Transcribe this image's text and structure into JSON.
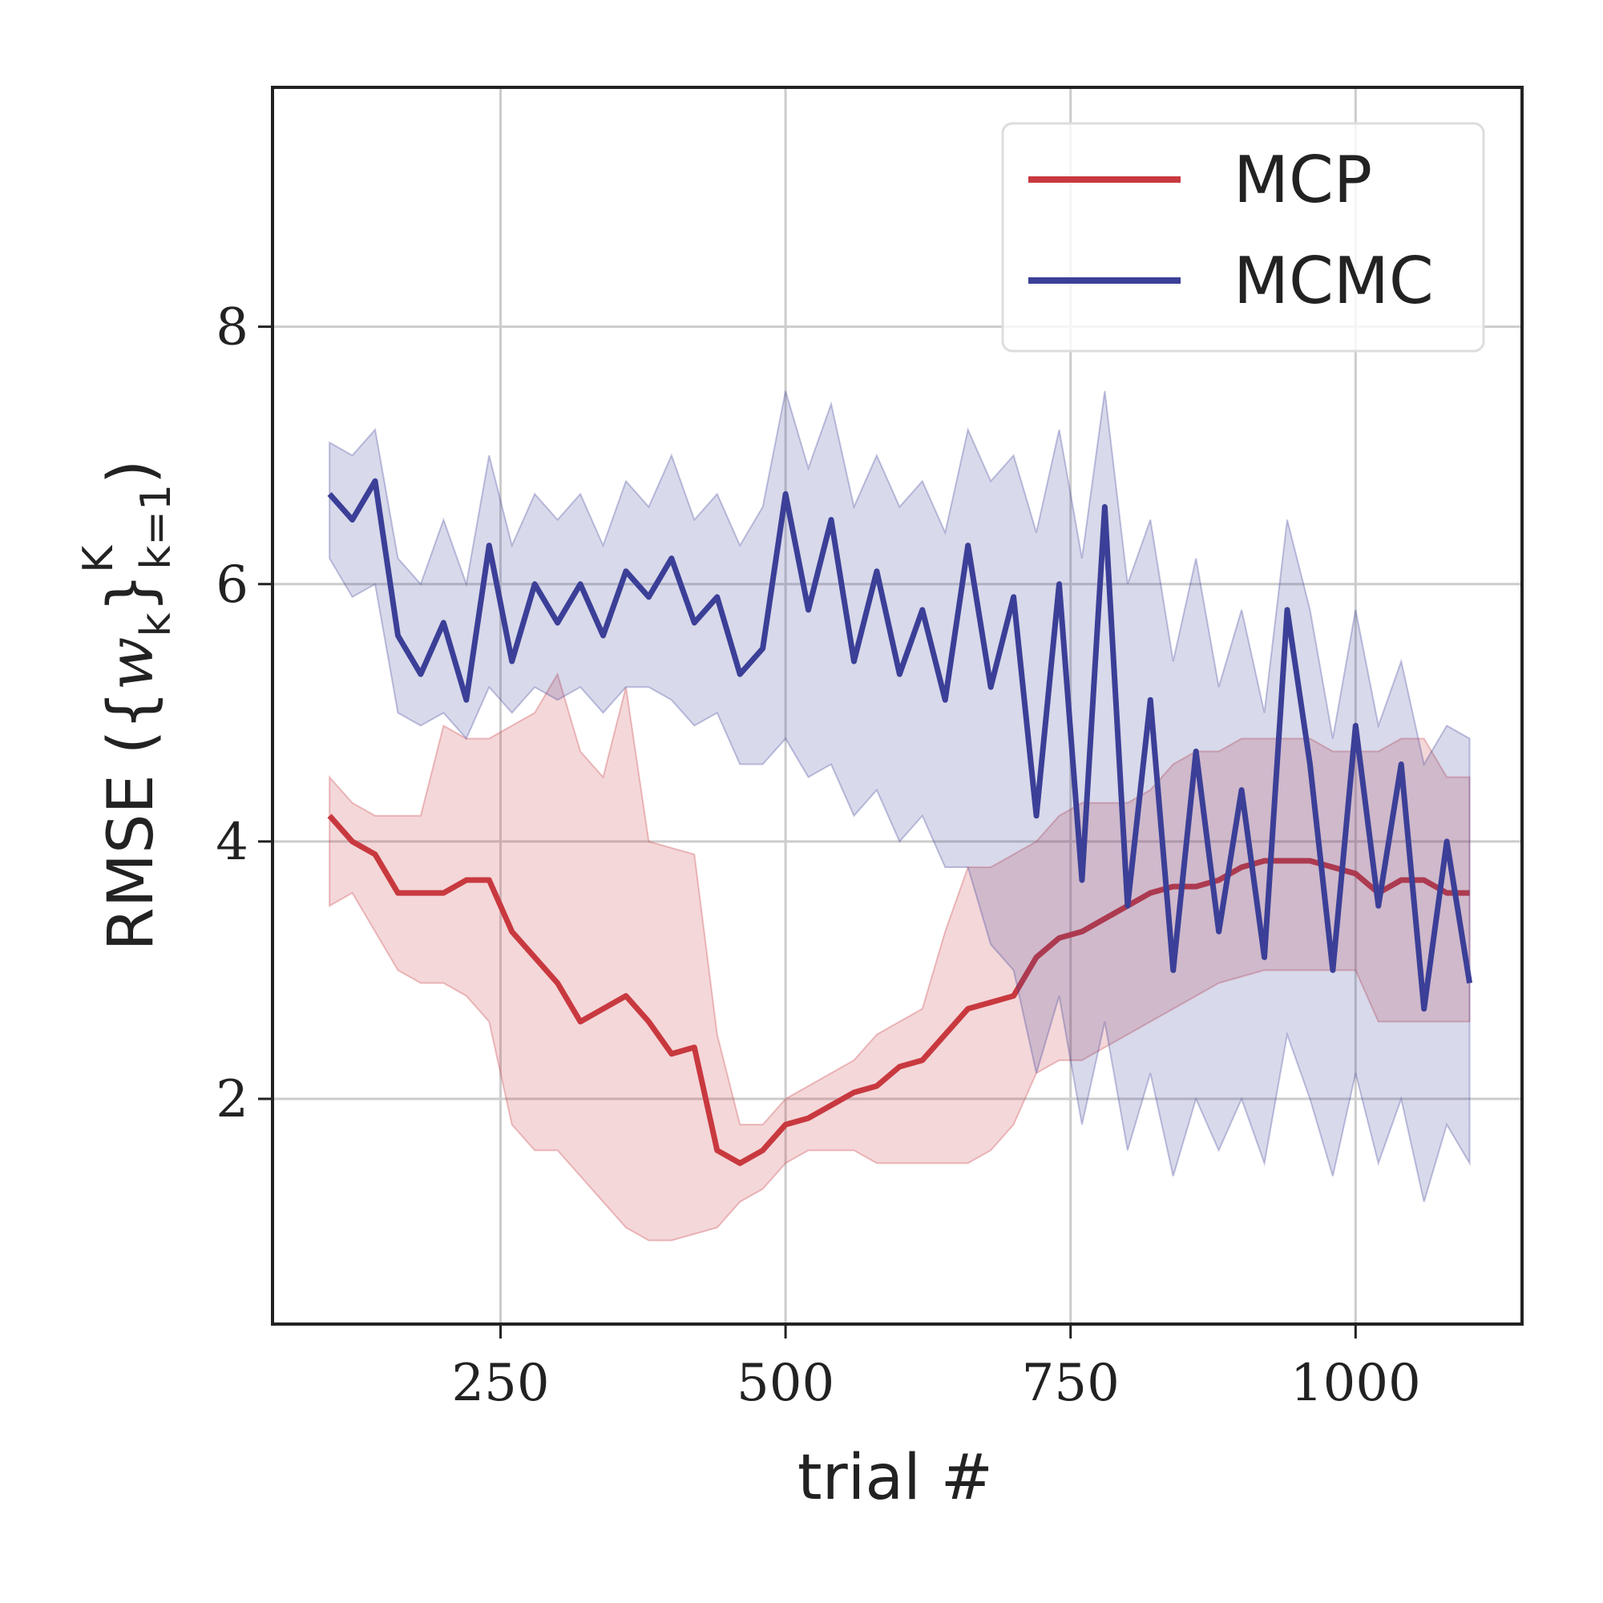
{
  "chart_data": {
    "type": "line",
    "x_label": "trial #",
    "y_label_parts": [
      {
        "text": "RMSE ("
      },
      {
        "text": "{"
      },
      {
        "text": "w",
        "style": "italic"
      },
      {
        "text": "k",
        "shift": "sub"
      },
      {
        "text": "}"
      },
      {
        "text": "K",
        "shift": "sup"
      },
      {
        "text": "k=1",
        "shift": "sub"
      },
      {
        "text": ")"
      }
    ],
    "x": [
      100,
      120,
      140,
      160,
      180,
      200,
      220,
      240,
      260,
      280,
      300,
      320,
      340,
      360,
      380,
      400,
      420,
      440,
      460,
      480,
      500,
      520,
      540,
      560,
      580,
      600,
      620,
      640,
      660,
      680,
      700,
      720,
      740,
      760,
      780,
      800,
      820,
      840,
      860,
      880,
      900,
      920,
      940,
      960,
      980,
      1000,
      1020,
      1040,
      1060,
      1080,
      1100
    ],
    "series": [
      {
        "name": "MCP",
        "color": "#c8393f",
        "values": [
          4.2,
          4.0,
          3.9,
          3.6,
          3.6,
          3.6,
          3.7,
          3.7,
          3.3,
          3.1,
          2.9,
          2.6,
          2.7,
          2.8,
          2.6,
          2.35,
          2.4,
          1.6,
          1.5,
          1.6,
          1.8,
          1.85,
          1.95,
          2.05,
          2.1,
          2.25,
          2.3,
          2.5,
          2.7,
          2.75,
          2.8,
          3.1,
          3.25,
          3.3,
          3.4,
          3.5,
          3.6,
          3.65,
          3.65,
          3.7,
          3.8,
          3.85,
          3.85,
          3.85,
          3.8,
          3.75,
          3.6,
          3.7,
          3.7,
          3.6,
          3.6
        ],
        "lower": [
          3.5,
          3.6,
          3.3,
          3.0,
          2.9,
          2.9,
          2.8,
          2.6,
          1.8,
          1.6,
          1.6,
          1.4,
          1.2,
          1.0,
          0.9,
          0.9,
          0.95,
          1.0,
          1.2,
          1.3,
          1.5,
          1.6,
          1.6,
          1.6,
          1.5,
          1.5,
          1.5,
          1.5,
          1.5,
          1.6,
          1.8,
          2.2,
          2.3,
          2.3,
          2.4,
          2.5,
          2.6,
          2.7,
          2.8,
          2.9,
          2.95,
          3.0,
          3.0,
          3.0,
          3.0,
          3.0,
          2.6,
          2.6,
          2.6,
          2.6,
          2.6
        ],
        "upper": [
          4.5,
          4.3,
          4.2,
          4.2,
          4.2,
          4.9,
          4.8,
          4.8,
          4.9,
          5.0,
          5.3,
          4.7,
          4.5,
          5.2,
          4.0,
          3.95,
          3.9,
          2.5,
          1.8,
          1.8,
          2.0,
          2.1,
          2.2,
          2.3,
          2.5,
          2.6,
          2.7,
          3.3,
          3.8,
          3.8,
          3.9,
          4.0,
          4.2,
          4.3,
          4.3,
          4.3,
          4.4,
          4.6,
          4.7,
          4.7,
          4.8,
          4.8,
          4.8,
          4.8,
          4.7,
          4.7,
          4.7,
          4.8,
          4.8,
          4.5,
          4.5
        ]
      },
      {
        "name": "MCMC",
        "color": "#3b3f97",
        "values": [
          6.7,
          6.5,
          6.8,
          5.6,
          5.3,
          5.7,
          5.1,
          6.3,
          5.4,
          6.0,
          5.7,
          6.0,
          5.6,
          6.1,
          5.9,
          6.2,
          5.7,
          5.9,
          5.3,
          5.5,
          6.7,
          5.8,
          6.5,
          5.4,
          6.1,
          5.3,
          5.8,
          5.1,
          6.3,
          5.2,
          5.9,
          4.2,
          6.0,
          3.7,
          6.6,
          3.5,
          5.1,
          3.0,
          4.7,
          3.3,
          4.4,
          3.1,
          5.8,
          4.6,
          3.0,
          4.9,
          3.5,
          4.6,
          2.7,
          4.0,
          2.9
        ],
        "lower": [
          6.2,
          5.9,
          6.0,
          5.0,
          4.9,
          5.0,
          4.8,
          5.2,
          5.0,
          5.2,
          5.1,
          5.2,
          5.0,
          5.2,
          5.2,
          5.1,
          4.9,
          5.0,
          4.6,
          4.6,
          4.8,
          4.5,
          4.6,
          4.2,
          4.4,
          4.0,
          4.2,
          3.8,
          3.8,
          3.2,
          3.0,
          2.2,
          2.8,
          1.8,
          2.6,
          1.6,
          2.2,
          1.4,
          2.0,
          1.6,
          2.0,
          1.5,
          2.5,
          2.0,
          1.4,
          2.2,
          1.5,
          2.0,
          1.2,
          1.8,
          1.5
        ],
        "upper": [
          7.1,
          7.0,
          7.2,
          6.2,
          6.0,
          6.5,
          6.0,
          7.0,
          6.3,
          6.7,
          6.5,
          6.7,
          6.3,
          6.8,
          6.6,
          7.0,
          6.5,
          6.7,
          6.3,
          6.6,
          7.5,
          6.9,
          7.4,
          6.6,
          7.0,
          6.6,
          6.8,
          6.4,
          7.2,
          6.8,
          7.0,
          6.4,
          7.2,
          6.2,
          7.5,
          6.0,
          6.5,
          5.4,
          6.2,
          5.2,
          5.8,
          5.0,
          6.5,
          5.8,
          4.8,
          5.8,
          4.9,
          5.4,
          4.6,
          4.9,
          4.8
        ]
      }
    ],
    "band_opacity": 0.2,
    "xlim": [
      50,
      1146
    ],
    "ylim": [
      0.25,
      9.86
    ],
    "xticks": [
      250,
      500,
      750,
      1000
    ],
    "yticks": [
      2,
      4,
      6,
      8
    ],
    "grid": true,
    "legend": "upper right"
  }
}
